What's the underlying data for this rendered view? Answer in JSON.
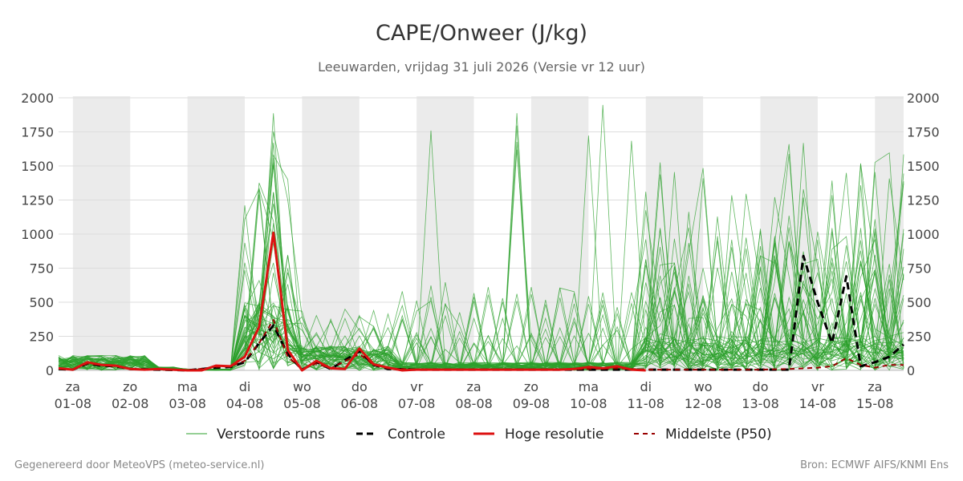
{
  "chart_data": {
    "type": "line",
    "title": "CAPE/Onweer (J/kg)",
    "subtitle": "Leeuwarden, vrijdag 31 juli 2026 (Versie vr 12 uur)",
    "ylim": [
      0,
      2000
    ],
    "yticks": [
      "0",
      "250",
      "500",
      "750",
      "1000",
      "1250",
      "1500",
      "1750",
      "2000"
    ],
    "grid": true,
    "legend_position": "bottom",
    "x_domain": [
      -0.25,
      14.5
    ],
    "x_ticks": [
      {
        "day": "za",
        "date": "01-08"
      },
      {
        "day": "zo",
        "date": "02-08"
      },
      {
        "day": "ma",
        "date": "03-08"
      },
      {
        "day": "di",
        "date": "04-08"
      },
      {
        "day": "wo",
        "date": "05-08"
      },
      {
        "day": "do",
        "date": "06-08"
      },
      {
        "day": "vr",
        "date": "07-08"
      },
      {
        "day": "za",
        "date": "08-08"
      },
      {
        "day": "zo",
        "date": "09-08"
      },
      {
        "day": "ma",
        "date": "10-08"
      },
      {
        "day": "di",
        "date": "11-08"
      },
      {
        "day": "wo",
        "date": "12-08"
      },
      {
        "day": "do",
        "date": "13-08"
      },
      {
        "day": "vr",
        "date": "14-08"
      },
      {
        "day": "za",
        "date": "15-08"
      }
    ],
    "shaded_days": [
      "01-08",
      "03-08",
      "05-08",
      "07-08",
      "09-08",
      "11-08",
      "13-08",
      "15-08"
    ],
    "colors": {
      "ensemble": "#2ca02c",
      "control": "#000000",
      "high_res": "#dd1111",
      "median": "#990000",
      "shade": "#ebebeb",
      "grid": "#dddddd"
    },
    "legend": {
      "ensemble": "Verstoorde runs",
      "control": "Controle",
      "high_res": "Hoge resolutie",
      "median": "Middelste (P50)"
    },
    "series": [
      {
        "name": "Hoge resolutie",
        "style": "solid",
        "points": [
          [
            -0.25,
            15
          ],
          [
            0,
            5
          ],
          [
            0.25,
            60
          ],
          [
            0.5,
            40
          ],
          [
            0.75,
            35
          ],
          [
            1,
            10
          ],
          [
            1.25,
            5
          ],
          [
            1.5,
            10
          ],
          [
            1.75,
            5
          ],
          [
            2,
            0
          ],
          [
            2.25,
            0
          ],
          [
            2.5,
            35
          ],
          [
            2.75,
            30
          ],
          [
            3,
            100
          ],
          [
            3.25,
            320
          ],
          [
            3.5,
            1010
          ],
          [
            3.75,
            150
          ],
          [
            4,
            0
          ],
          [
            4.25,
            70
          ],
          [
            4.5,
            15
          ],
          [
            4.75,
            10
          ],
          [
            5,
            160
          ],
          [
            5.25,
            45
          ],
          [
            5.5,
            20
          ],
          [
            5.75,
            0
          ],
          [
            6,
            5
          ],
          [
            6.5,
            5
          ],
          [
            7,
            5
          ],
          [
            7.5,
            5
          ],
          [
            8,
            5
          ],
          [
            8.5,
            5
          ],
          [
            8.75,
            10
          ],
          [
            9,
            25
          ],
          [
            9.25,
            15
          ],
          [
            9.5,
            30
          ],
          [
            9.75,
            5
          ],
          [
            10,
            0
          ]
        ]
      },
      {
        "name": "Controle",
        "style": "dashed",
        "points": [
          [
            -0.25,
            10
          ],
          [
            0,
            5
          ],
          [
            0.25,
            50
          ],
          [
            0.5,
            35
          ],
          [
            0.75,
            30
          ],
          [
            1,
            10
          ],
          [
            1.5,
            5
          ],
          [
            2,
            0
          ],
          [
            2.5,
            20
          ],
          [
            2.75,
            25
          ],
          [
            3,
            60
          ],
          [
            3.25,
            200
          ],
          [
            3.5,
            330
          ],
          [
            3.75,
            120
          ],
          [
            4,
            5
          ],
          [
            4.25,
            60
          ],
          [
            4.5,
            10
          ],
          [
            5,
            140
          ],
          [
            5.25,
            40
          ],
          [
            5.5,
            10
          ],
          [
            6,
            5
          ],
          [
            7,
            5
          ],
          [
            8,
            5
          ],
          [
            9,
            5
          ],
          [
            10,
            5
          ],
          [
            11,
            5
          ],
          [
            12,
            5
          ],
          [
            12.5,
            5
          ],
          [
            12.75,
            840
          ],
          [
            13,
            500
          ],
          [
            13.25,
            200
          ],
          [
            13.5,
            690
          ],
          [
            13.75,
            30
          ],
          [
            14,
            60
          ],
          [
            14.25,
            100
          ],
          [
            14.5,
            190
          ]
        ]
      },
      {
        "name": "Middelste (P50)",
        "style": "dashed",
        "points": [
          [
            -0.25,
            15
          ],
          [
            0,
            5
          ],
          [
            0.25,
            50
          ],
          [
            0.5,
            40
          ],
          [
            0.75,
            30
          ],
          [
            1,
            10
          ],
          [
            1.5,
            5
          ],
          [
            2,
            0
          ],
          [
            2.5,
            25
          ],
          [
            2.75,
            30
          ],
          [
            3,
            70
          ],
          [
            3.25,
            200
          ],
          [
            3.5,
            370
          ],
          [
            3.75,
            100
          ],
          [
            4,
            10
          ],
          [
            4.25,
            50
          ],
          [
            4.5,
            15
          ],
          [
            5,
            120
          ],
          [
            5.25,
            40
          ],
          [
            5.5,
            15
          ],
          [
            6,
            5
          ],
          [
            7,
            5
          ],
          [
            8,
            5
          ],
          [
            9,
            10
          ],
          [
            9.5,
            15
          ],
          [
            10,
            5
          ],
          [
            11,
            5
          ],
          [
            12,
            5
          ],
          [
            12.5,
            10
          ],
          [
            13,
            20
          ],
          [
            13.25,
            30
          ],
          [
            13.5,
            90
          ],
          [
            13.75,
            40
          ],
          [
            14,
            20
          ],
          [
            14.25,
            40
          ],
          [
            14.5,
            40
          ]
        ]
      }
    ]
  },
  "footer": {
    "left": "Gegenereerd door MeteoVPS (meteo-service.nl)",
    "right": "Bron: ECMWF AIFS/KNMI Ens"
  }
}
